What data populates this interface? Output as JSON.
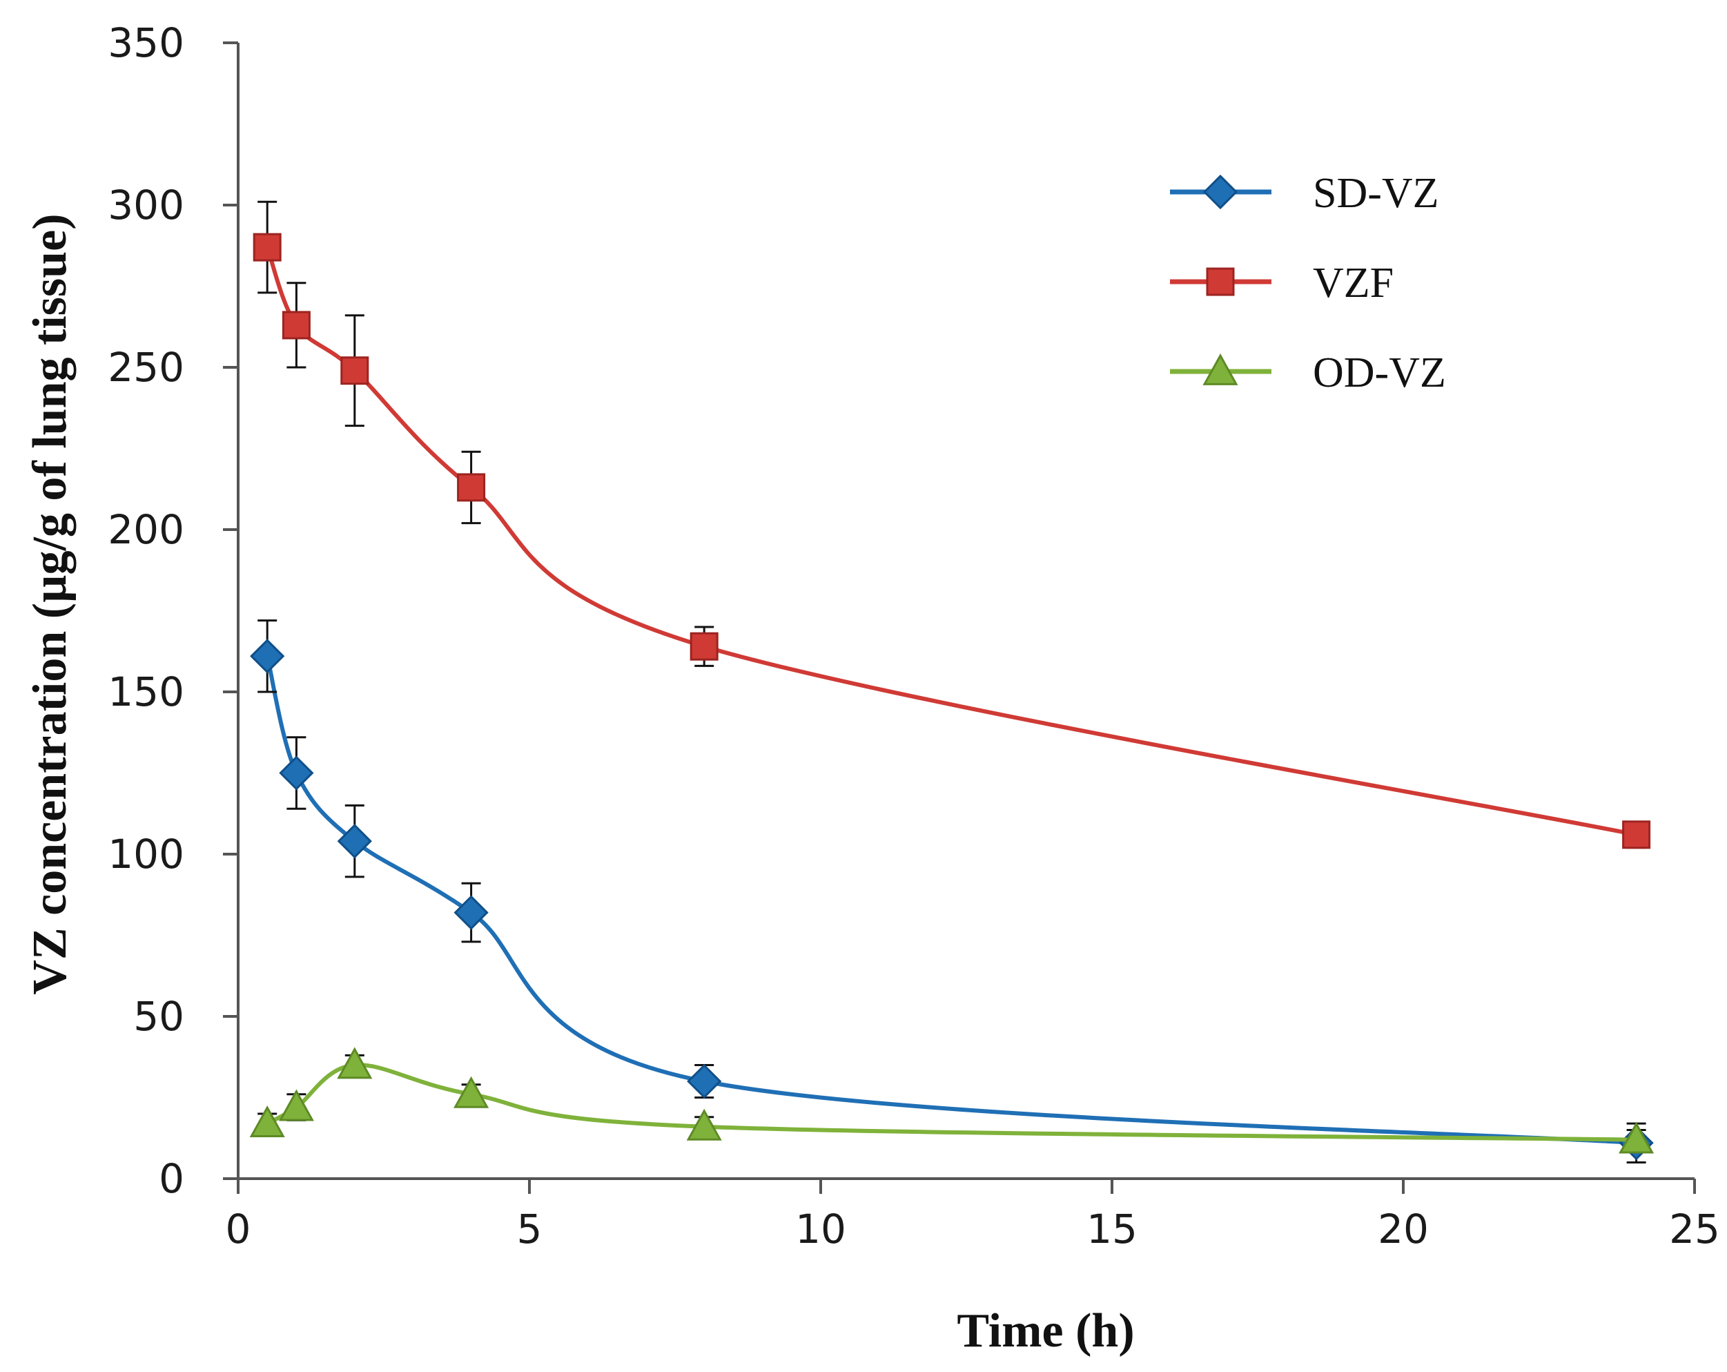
{
  "chart_data": {
    "type": "line",
    "title": "",
    "xlabel": "Time (h)",
    "ylabel": "VZ concentration (µg/g of lung tissue)",
    "xlim": [
      0,
      25
    ],
    "ylim": [
      0,
      350
    ],
    "xticks": [
      0,
      5,
      10,
      15,
      20,
      25
    ],
    "yticks": [
      0,
      50,
      100,
      150,
      200,
      250,
      300,
      350
    ],
    "grid": false,
    "legend_position": "top-right",
    "x": [
      0.5,
      1,
      2,
      4,
      8,
      24
    ],
    "series": [
      {
        "name": "SD-VZ",
        "marker": "diamond",
        "color": "#1f6fb5",
        "values": [
          161,
          125,
          104,
          82,
          30,
          11
        ],
        "errors": [
          11,
          11,
          11,
          9,
          5,
          6
        ]
      },
      {
        "name": "VZF",
        "marker": "square",
        "color": "#d03a35",
        "values": [
          287,
          263,
          249,
          213,
          164,
          106
        ],
        "errors": [
          14,
          13,
          17,
          11,
          6,
          4
        ]
      },
      {
        "name": "OD-VZ",
        "marker": "triangle",
        "color": "#7fb23a",
        "values": [
          17,
          22,
          35,
          26,
          16,
          12
        ],
        "errors": [
          3,
          4,
          3,
          3,
          3,
          3
        ]
      }
    ]
  }
}
